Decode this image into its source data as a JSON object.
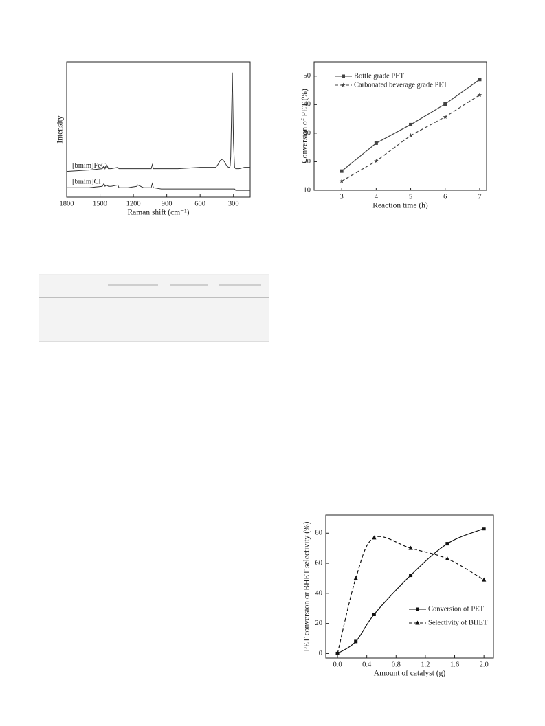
{
  "chart_data": [
    {
      "type": "line",
      "x_label": "Raman shift (cm⁻¹)",
      "y_label": "Intensity",
      "x": [
        1800,
        1600,
        1480,
        1465,
        1455,
        1440,
        1425,
        1400,
        1340,
        1330,
        1250,
        1170,
        1160,
        1110,
        1040,
        1030,
        1020,
        950,
        800,
        600,
        460,
        440,
        420,
        400,
        380,
        360,
        345,
        335,
        330,
        325,
        318,
        310,
        300,
        290,
        280,
        250,
        200,
        150
      ],
      "xlim": [
        1800,
        150
      ],
      "xticks": [
        1800,
        1500,
        1200,
        900,
        600,
        300
      ],
      "ylim": [
        0,
        100
      ],
      "series": [
        {
          "name": "[bmim]FeCl",
          "color": "#333333",
          "values": [
            19,
            20,
            21,
            23,
            21,
            24,
            21,
            21,
            22,
            21,
            21,
            21,
            21,
            21,
            21,
            24,
            21,
            21,
            21,
            22,
            22,
            24,
            27,
            28,
            26,
            23,
            22,
            22,
            23,
            30,
            60,
            92,
            40,
            22,
            21,
            21,
            22,
            22
          ]
        },
        {
          "name": "[bmim]Cl",
          "color": "#333333",
          "values": [
            7,
            7,
            8,
            10,
            8,
            9,
            8,
            8,
            9,
            7,
            7,
            8,
            9,
            7,
            7,
            10,
            7,
            6,
            6,
            6,
            6,
            6,
            6,
            6,
            6,
            6,
            6,
            6,
            6,
            6,
            6,
            6,
            6,
            6,
            5,
            5,
            5,
            5
          ]
        }
      ]
    },
    {
      "type": "line",
      "x_label": "Reaction time (h)",
      "y_label": "Conversion of PET (%)",
      "x": [
        3,
        4,
        5,
        6,
        7
      ],
      "xlim": [
        2.2,
        7.2
      ],
      "xticks": [
        3,
        4,
        5,
        6,
        7
      ],
      "ylim": [
        10,
        55
      ],
      "yticks": [
        10,
        20,
        30,
        40,
        50
      ],
      "legend": "upper left",
      "series": [
        {
          "name": "Bottle grade PET",
          "color": "#444444",
          "marker": "square",
          "line_style": "solid",
          "values": [
            16.7,
            26.5,
            33,
            40.2,
            48.8
          ]
        },
        {
          "name": "Carbonated beverage grade PET",
          "color": "#444444",
          "marker": "star",
          "line_style": "dashed",
          "values": [
            13.2,
            20.2,
            29.2,
            35.7,
            43.4
          ]
        }
      ]
    },
    {
      "type": "line",
      "x_label": "Amount of catalyst (g)",
      "y_label": "PET conversion or BHET selectivity (%)",
      "x": [
        0,
        0.25,
        0.5,
        1.0,
        1.5,
        2.0
      ],
      "xlim": [
        -0.16,
        2.13
      ],
      "xticks": [
        {
          "value": 0,
          "label": "0.0"
        },
        0.4,
        0.8,
        1.2,
        1.6,
        {
          "value": 2,
          "label": "2.0"
        }
      ],
      "ylim": [
        -3,
        92
      ],
      "yticks": [
        0,
        20,
        40,
        60,
        80
      ],
      "legend": "lower right",
      "smooth": true,
      "series": [
        {
          "name": "Conversion of PET",
          "color": "#111111",
          "marker": "square",
          "line_style": "solid",
          "values": [
            0,
            8,
            26,
            52,
            73,
            83
          ]
        },
        {
          "name": "Selectivity of BHET",
          "color": "#111111",
          "marker": "triangle",
          "line_style": "dashed",
          "values": [
            0,
            50,
            77,
            70,
            63,
            49
          ]
        }
      ]
    }
  ]
}
